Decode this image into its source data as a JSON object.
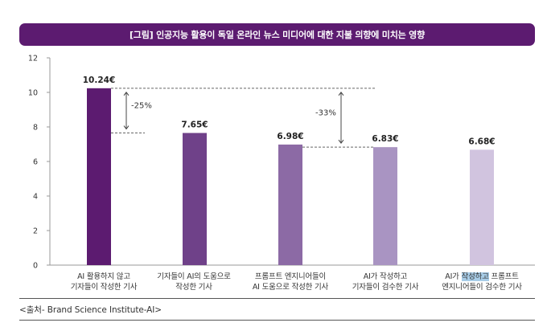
{
  "title": "[그림] 인공지능 활용이 독일 온라인 뉴스 미디어에 대한 지불 의향에 미치는 영향",
  "source": "<출처- Brand Science Institute-AI>",
  "chart_data": {
    "type": "bar",
    "unit": "€",
    "ylim": [
      0,
      12
    ],
    "yticks": [
      0,
      2,
      4,
      6,
      8,
      10,
      12
    ],
    "grid": false,
    "categories": [
      {
        "lines": [
          "AI 활용하지 않고",
          "기자들이 작성한 기사"
        ]
      },
      {
        "lines": [
          "기자들이 AI의 도움으로",
          "작성한 기사"
        ]
      },
      {
        "lines": [
          "프롬프트 엔지니어들이",
          "AI 도움으로 작성한 기사"
        ]
      },
      {
        "lines": [
          "AI가 작성하고",
          "기자들이 검수한 기사"
        ]
      },
      {
        "lines": [
          "AI가 ",
          "작성하고",
          " 프롬프트",
          "엔지니어들이 검수한 기사"
        ]
      }
    ],
    "values": [
      10.24,
      7.65,
      6.98,
      6.83,
      6.68
    ],
    "value_labels": [
      "10.24€",
      "7.65€",
      "6.98€",
      "6.83€",
      "6.68€"
    ],
    "bar_colors": [
      "#5c1b70",
      "#6f4189",
      "#8c6aa5",
      "#a994c2",
      "#d1c4df"
    ],
    "annotations": [
      {
        "label": "-25%",
        "from_value": 10.24,
        "to_value": 7.65
      },
      {
        "label": "-33%",
        "from_value": 10.24,
        "to_value": 6.83
      }
    ]
  }
}
